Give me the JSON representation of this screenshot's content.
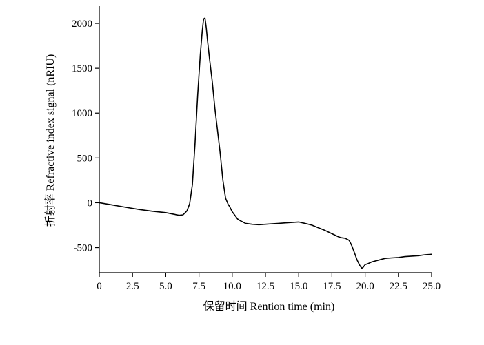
{
  "chart_data": {
    "type": "line",
    "title": "",
    "xlabel": "保留时间 Rention time (min)",
    "ylabel": "折射率 Refractive index signal (nRIU)",
    "xlim": [
      0,
      25
    ],
    "ylim": [
      -780,
      2200
    ],
    "x_ticks": [
      0,
      2.5,
      5,
      7.5,
      10,
      12.5,
      15,
      17.5,
      20,
      22.5,
      25
    ],
    "x_tick_labels": [
      "0",
      "2.5",
      "5.0",
      "7.5",
      "10.0",
      "12.5",
      "15.0",
      "17.5",
      "20.0",
      "22.5",
      "25.0"
    ],
    "y_ticks": [
      -500,
      0,
      500,
      1000,
      1500,
      2000
    ],
    "y_tick_labels": [
      "-500",
      "0",
      "500",
      "1000",
      "1500",
      "2000"
    ],
    "grid": false,
    "legend": "none",
    "series": [
      {
        "x": [
          0,
          1,
          2,
          3,
          4,
          5,
          5.5,
          6,
          6.3,
          6.6,
          6.8,
          7.0,
          7.2,
          7.4,
          7.6,
          7.75,
          7.85,
          7.95,
          8.05,
          8.15,
          8.3,
          8.5,
          8.7,
          8.9,
          9.1,
          9.3,
          9.5,
          9.7,
          9.8,
          10.0,
          10.2,
          10.4,
          10.6,
          10.8,
          11.0,
          11.5,
          12.0,
          12.5,
          13.0,
          13.5,
          14.0,
          14.5,
          15.0,
          15.3,
          15.6,
          16.0,
          16.5,
          17.0,
          17.5,
          18.0,
          18.2,
          18.5,
          18.8,
          19.0,
          19.2,
          19.4,
          19.6,
          19.75,
          19.85,
          20.0,
          20.2,
          20.5,
          21.0,
          21.5,
          22.0,
          22.5,
          23.0,
          23.5,
          24.0,
          24.5,
          25.0
        ],
        "y": [
          0,
          -25,
          -50,
          -75,
          -95,
          -110,
          -125,
          -140,
          -135,
          -90,
          -10,
          200,
          650,
          1200,
          1650,
          1920,
          2050,
          2060,
          1950,
          1800,
          1600,
          1350,
          1050,
          800,
          550,
          250,
          50,
          -20,
          -40,
          -100,
          -140,
          -180,
          -200,
          -215,
          -230,
          -240,
          -245,
          -240,
          -235,
          -230,
          -225,
          -220,
          -215,
          -225,
          -235,
          -250,
          -280,
          -310,
          -345,
          -380,
          -390,
          -395,
          -420,
          -480,
          -560,
          -640,
          -700,
          -730,
          -720,
          -690,
          -680,
          -660,
          -640,
          -620,
          -615,
          -610,
          -600,
          -595,
          -590,
          -580,
          -575
        ]
      }
    ]
  }
}
